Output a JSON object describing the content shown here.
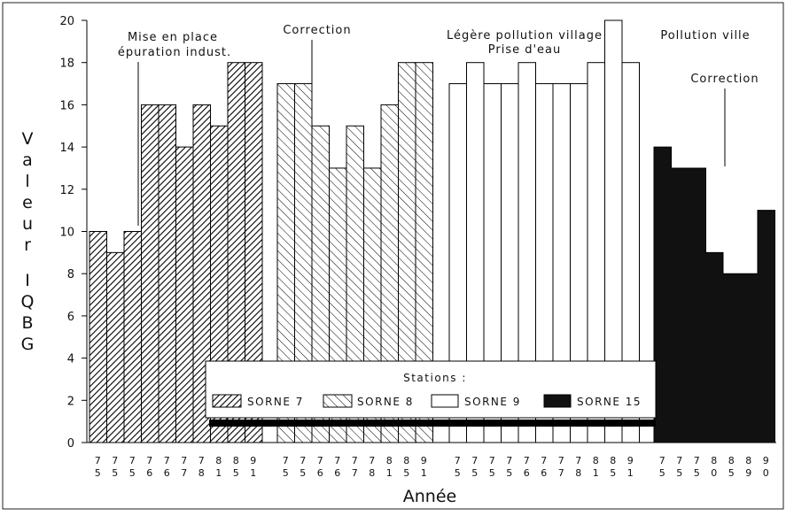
{
  "chart_data": {
    "type": "bar",
    "title": "",
    "xlabel": "Année",
    "ylabel": "Valeur IQBG",
    "ylim": [
      0,
      20
    ],
    "yticks": [
      0,
      2,
      4,
      6,
      8,
      10,
      12,
      14,
      16,
      18,
      20
    ],
    "grid": false,
    "legend_title": "Stations :",
    "legend_position": "bottom-center",
    "colors": {
      "SORNE 7": "#444444",
      "SORNE 8": "#777777",
      "SORNE 9": "#ffffff",
      "SORNE 15": "#111111"
    },
    "series": [
      {
        "name": "SORNE 7",
        "pattern": "dense-hatch",
        "categories": [
          "7\n5",
          "7\n5",
          "7\n5",
          "7\n6",
          "7\n6",
          "7\n7",
          "7\n8",
          "8\n1",
          "8\n5",
          "9\n1"
        ],
        "values": [
          10,
          9,
          10,
          16,
          16,
          14,
          16,
          15,
          18,
          18
        ]
      },
      {
        "name": "SORNE 8",
        "pattern": "sparse-hatch",
        "categories": [
          "7\n5",
          "7\n5",
          "7\n6",
          "7\n6",
          "7\n7",
          "7\n8",
          "8\n1",
          "8\n5",
          "9\n1"
        ],
        "values": [
          17,
          17,
          15,
          13,
          15,
          13,
          16,
          18,
          18
        ]
      },
      {
        "name": "SORNE 9",
        "pattern": "empty",
        "categories": [
          "7\n5",
          "7\n5",
          "7\n5",
          "7\n5",
          "7\n6",
          "7\n6",
          "7\n7",
          "7\n8",
          "8\n1",
          "8\n5",
          "9\n1"
        ],
        "values": [
          17,
          18,
          17,
          17,
          18,
          17,
          17,
          17,
          18,
          20,
          18
        ]
      },
      {
        "name": "SORNE 15",
        "pattern": "solid",
        "categories": [
          "7\n5",
          "7\n5",
          "7\n5",
          "8\n0",
          "8\n5",
          "8\n9",
          "9\n0"
        ],
        "values": [
          14,
          13,
          13,
          9,
          8,
          8,
          11
        ]
      }
    ],
    "annotations": [
      {
        "text": "Mise en place"
      },
      {
        "text": "épuration indust."
      },
      {
        "text": "Correction"
      },
      {
        "text": "Légère pollution village"
      },
      {
        "text": "Prise d'eau"
      },
      {
        "text": "Pollution ville"
      },
      {
        "text": "Correction"
      }
    ]
  }
}
